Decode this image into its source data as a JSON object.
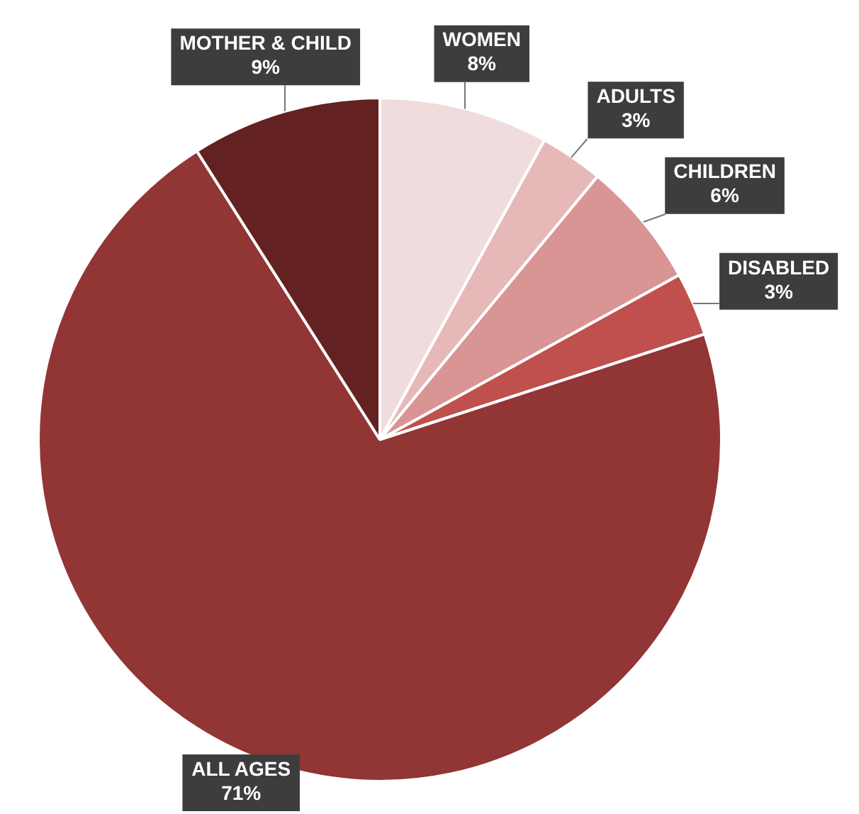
{
  "chart_data": {
    "type": "pie",
    "categories": [
      "WOMEN",
      "ADULTS",
      "CHILDREN",
      "DISABLED",
      "ALL AGES",
      "MOTHER & CHILD"
    ],
    "values": [
      8,
      3,
      6,
      3,
      71,
      9
    ],
    "value_labels": [
      "8%",
      "3%",
      "6%",
      "3%",
      "71%",
      "9%"
    ],
    "colors": [
      "#f0dcdc",
      "#e6b8b8",
      "#d99494",
      "#c0504d",
      "#923535",
      "#632121"
    ],
    "legend": false
  }
}
